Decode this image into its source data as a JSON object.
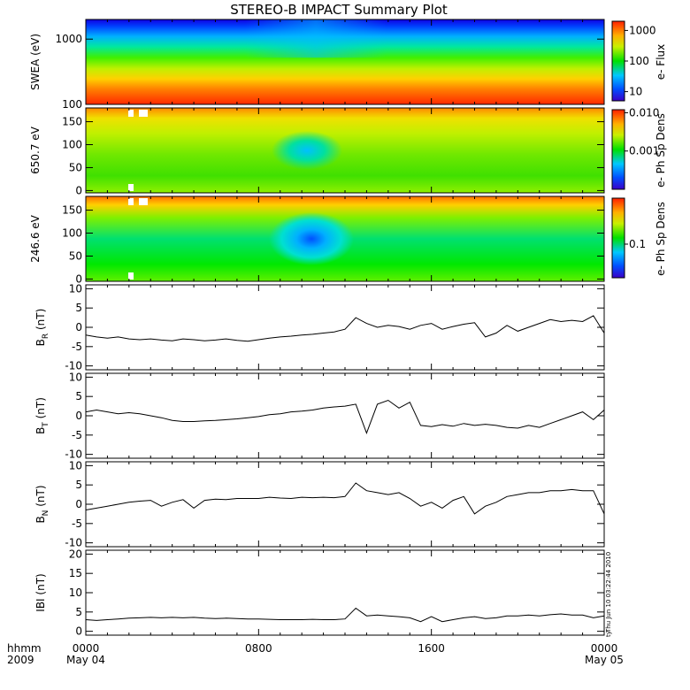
{
  "title": "STEREO-B IMPACT Summary Plot",
  "stamp": "Thu Jun 10 03:22:44 2010",
  "stamp_id": "ty",
  "x_axis": {
    "unit_label": "hhmm",
    "year_label": "2009",
    "range_hours": [
      0,
      24
    ],
    "ticks": [
      {
        "hour": 0,
        "time": "0000",
        "date": "May 04"
      },
      {
        "hour": 8,
        "time": "0800",
        "date": ""
      },
      {
        "hour": 16,
        "time": "1600",
        "date": ""
      },
      {
        "hour": 24,
        "time": "0000",
        "date": "May 05"
      }
    ]
  },
  "chart_data": [
    {
      "type": "heatmap",
      "ylabel": "SWEA (eV)",
      "yscale": "log",
      "ylim": [
        100,
        2000
      ],
      "yticks": [
        "1000",
        "100"
      ],
      "colorbar": {
        "label": "e- Flux",
        "scale": "log",
        "range": [
          5,
          2000
        ],
        "ticks": [
          "1000",
          "100",
          "10"
        ]
      },
      "description_rows": [
        {
          "energy_eV": 2000,
          "flux": 6
        },
        {
          "energy_eV": 1500,
          "flux": 12
        },
        {
          "energy_eV": 1000,
          "flux": 40
        },
        {
          "energy_eV": 600,
          "flux": 120
        },
        {
          "energy_eV": 400,
          "flux": 300
        },
        {
          "energy_eV": 250,
          "flux": 700
        },
        {
          "energy_eV": 150,
          "flux": 1300
        },
        {
          "energy_eV": 100,
          "flux": 1600
        }
      ]
    },
    {
      "type": "heatmap",
      "ylabel": "650.7 eV",
      "ylim": [
        -5,
        180
      ],
      "yticks": [
        "150",
        "100",
        "50",
        "0"
      ],
      "colorbar": {
        "label": "e- Ph Sp Dens",
        "scale": "log",
        "range": [
          0.0001,
          0.012
        ],
        "ticks": [
          "0.010",
          "0.001"
        ]
      }
    },
    {
      "type": "heatmap",
      "ylabel": "246.6 eV",
      "ylim": [
        -5,
        180
      ],
      "yticks": [
        "150",
        "100",
        "50",
        "0"
      ],
      "colorbar": {
        "label": "e- Ph Sp Dens",
        "scale": "log",
        "range": [
          0.04,
          0.35
        ],
        "ticks": [
          "0.1"
        ]
      }
    },
    {
      "type": "line",
      "ylabel": "BR (nT)",
      "ylabel_main": "B",
      "ylabel_sub": "R",
      "ylabel_unit": "(nT)",
      "ylim": [
        -11,
        11
      ],
      "yticks": [
        "10",
        "5",
        "0",
        "-5",
        "-10"
      ],
      "x": [
        0,
        0.5,
        1,
        1.5,
        2,
        2.5,
        3,
        3.5,
        4,
        4.5,
        5,
        5.5,
        6,
        6.5,
        7,
        7.5,
        8,
        8.5,
        9,
        9.5,
        10,
        10.5,
        11,
        11.5,
        12,
        12.5,
        13,
        13.5,
        14,
        14.5,
        15,
        15.5,
        16,
        16.5,
        17,
        17.5,
        18,
        18.5,
        19,
        19.5,
        20,
        20.5,
        21,
        21.5,
        22,
        22.5,
        23,
        23.5,
        24
      ],
      "values": [
        -2,
        -2.5,
        -2.8,
        -2.5,
        -3,
        -3.2,
        -3,
        -3.3,
        -3.5,
        -3,
        -3.2,
        -3.5,
        -3.3,
        -3,
        -3.4,
        -3.6,
        -3.2,
        -2.8,
        -2.5,
        -2.3,
        -2,
        -1.8,
        -1.5,
        -1.2,
        -0.5,
        2.5,
        1,
        0,
        0.5,
        0.2,
        -0.5,
        0.5,
        1,
        -0.5,
        0.2,
        0.8,
        1.2,
        -2.5,
        -1.5,
        0.5,
        -1,
        0,
        1,
        2,
        1.5,
        1.8,
        1.5,
        3,
        -1.5
      ]
    },
    {
      "type": "line",
      "ylabel": "BT (nT)",
      "ylabel_main": "B",
      "ylabel_sub": "T",
      "ylabel_unit": "(nT)",
      "ylim": [
        -11,
        11
      ],
      "yticks": [
        "10",
        "5",
        "0",
        "-5",
        "-10"
      ],
      "x": [
        0,
        0.5,
        1,
        1.5,
        2,
        2.5,
        3,
        3.5,
        4,
        4.5,
        5,
        5.5,
        6,
        6.5,
        7,
        7.5,
        8,
        8.5,
        9,
        9.5,
        10,
        10.5,
        11,
        11.5,
        12,
        12.5,
        13,
        13.5,
        14,
        14.5,
        15,
        15.5,
        16,
        16.5,
        17,
        17.5,
        18,
        18.5,
        19,
        19.5,
        20,
        20.5,
        21,
        21.5,
        22,
        22.5,
        23,
        23.5,
        24
      ],
      "values": [
        1,
        1.5,
        1,
        0.5,
        0.8,
        0.5,
        0,
        -0.5,
        -1.2,
        -1.5,
        -1.5,
        -1.3,
        -1.2,
        -1,
        -0.8,
        -0.5,
        -0.2,
        0.3,
        0.5,
        1,
        1.2,
        1.5,
        2,
        2.3,
        2.5,
        3,
        -4.5,
        3,
        4,
        2,
        3.5,
        -2.5,
        -2.8,
        -2.3,
        -2.7,
        -2,
        -2.5,
        -2.2,
        -2.5,
        -3,
        -3.2,
        -2.5,
        -3,
        -2,
        -1,
        0,
        1,
        -1,
        1.5
      ]
    },
    {
      "type": "line",
      "ylabel": "BN (nT)",
      "ylabel_main": "B",
      "ylabel_sub": "N",
      "ylabel_unit": "(nT)",
      "ylim": [
        -11,
        11
      ],
      "yticks": [
        "10",
        "5",
        "0",
        "-5",
        "-10"
      ],
      "x": [
        0,
        0.5,
        1,
        1.5,
        2,
        2.5,
        3,
        3.5,
        4,
        4.5,
        5,
        5.5,
        6,
        6.5,
        7,
        7.5,
        8,
        8.5,
        9,
        9.5,
        10,
        10.5,
        11,
        11.5,
        12,
        12.5,
        13,
        13.5,
        14,
        14.5,
        15,
        15.5,
        16,
        16.5,
        17,
        17.5,
        18,
        18.5,
        19,
        19.5,
        20,
        20.5,
        21,
        21.5,
        22,
        22.5,
        23,
        23.5,
        24
      ],
      "values": [
        -1.5,
        -1,
        -0.5,
        0,
        0.5,
        0.8,
        1,
        -0.5,
        0.5,
        1.2,
        -1,
        1,
        1.3,
        1.2,
        1.5,
        1.5,
        1.5,
        1.8,
        1.6,
        1.5,
        1.8,
        1.7,
        1.8,
        1.7,
        2,
        5.5,
        3.5,
        3,
        2.5,
        3,
        1.5,
        -0.5,
        0.5,
        -1,
        1,
        2,
        -2.5,
        -0.5,
        0.5,
        2,
        2.5,
        3,
        3,
        3.5,
        3.5,
        3.8,
        3.5,
        3.5,
        -2.5
      ]
    },
    {
      "type": "line",
      "ylabel": "|B| (nT)",
      "ylabel_main": "IBI",
      "ylabel_sub": "",
      "ylabel_unit": "(nT)",
      "ylim": [
        -1,
        21
      ],
      "yticks": [
        "20",
        "15",
        "10",
        "5",
        "0"
      ],
      "x": [
        0,
        0.5,
        1,
        1.5,
        2,
        2.5,
        3,
        3.5,
        4,
        4.5,
        5,
        5.5,
        6,
        6.5,
        7,
        7.5,
        8,
        8.5,
        9,
        9.5,
        10,
        10.5,
        11,
        11.5,
        12,
        12.5,
        13,
        13.5,
        14,
        14.5,
        15,
        15.5,
        16,
        16.5,
        17,
        17.5,
        18,
        18.5,
        19,
        19.5,
        20,
        20.5,
        21,
        21.5,
        22,
        22.5,
        23,
        23.5,
        24
      ],
      "values": [
        3,
        2.8,
        3,
        3.2,
        3.4,
        3.5,
        3.6,
        3.5,
        3.6,
        3.5,
        3.6,
        3.4,
        3.3,
        3.4,
        3.3,
        3.2,
        3.2,
        3.1,
        3,
        3,
        3,
        3.1,
        3,
        3,
        3.2,
        6,
        4,
        4.2,
        4,
        3.8,
        3.5,
        2.5,
        3.8,
        2.5,
        3,
        3.5,
        3.8,
        3.3,
        3.5,
        4,
        4,
        4.2,
        4,
        4.3,
        4.5,
        4.2,
        4.2,
        3.5,
        4
      ]
    }
  ]
}
